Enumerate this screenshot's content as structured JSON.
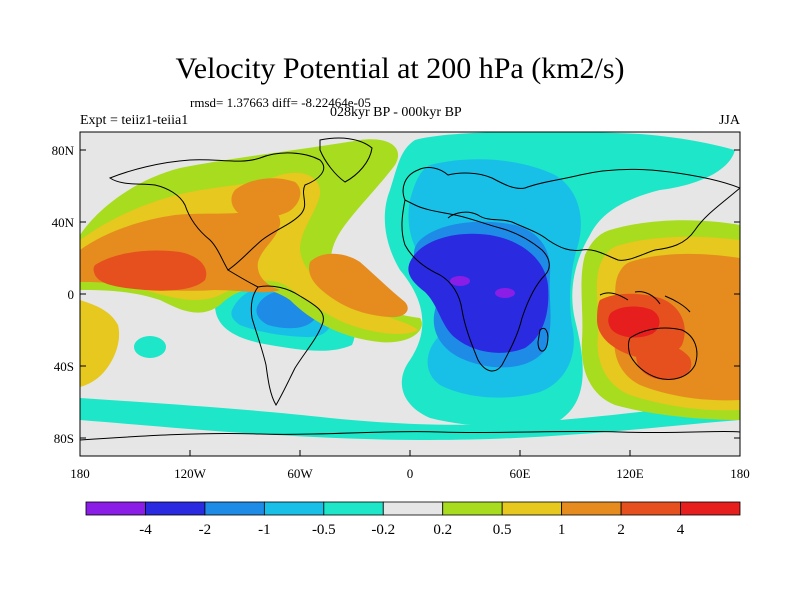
{
  "title": "Velocity Potential at 200 hPa (km2/s)",
  "stats": "rmsd= 1.37663 diff= -8.22464e-05",
  "experiment": "Expt = teiiz1-teiia1",
  "period": "028kyr BP - 000kyr BP",
  "season": "JJA",
  "lat_labels": [
    "80N",
    "40N",
    "0",
    "40S",
    "80S"
  ],
  "lon_labels": [
    "180",
    "120W",
    "60W",
    "0",
    "60E",
    "120E",
    "180"
  ],
  "colorbar": {
    "colors": [
      "#8a1ee6",
      "#2a2ae0",
      "#1e8ce6",
      "#18c0e8",
      "#1ee6c8",
      "#e6e6e6",
      "#a8dc1e",
      "#e6c81e",
      "#e68c1e",
      "#e6501e",
      "#e61e1e"
    ],
    "labels": [
      "-4",
      "-2",
      "-1",
      "-0.5",
      "-0.2",
      "0.2",
      "0.5",
      "1",
      "2",
      "4"
    ]
  },
  "map_colors": {
    "neutral": "#e6e6e6",
    "teal": "#1ee6c8",
    "cyan": "#18c0e8",
    "blue": "#1e8ce6",
    "darkblue": "#2a2ae0",
    "purple": "#8a1ee6",
    "green": "#a8dc1e",
    "yellow": "#e6c81e",
    "orange": "#e68c1e",
    "redorange": "#e6501e",
    "red": "#e61e1e",
    "coast": "#000000"
  }
}
